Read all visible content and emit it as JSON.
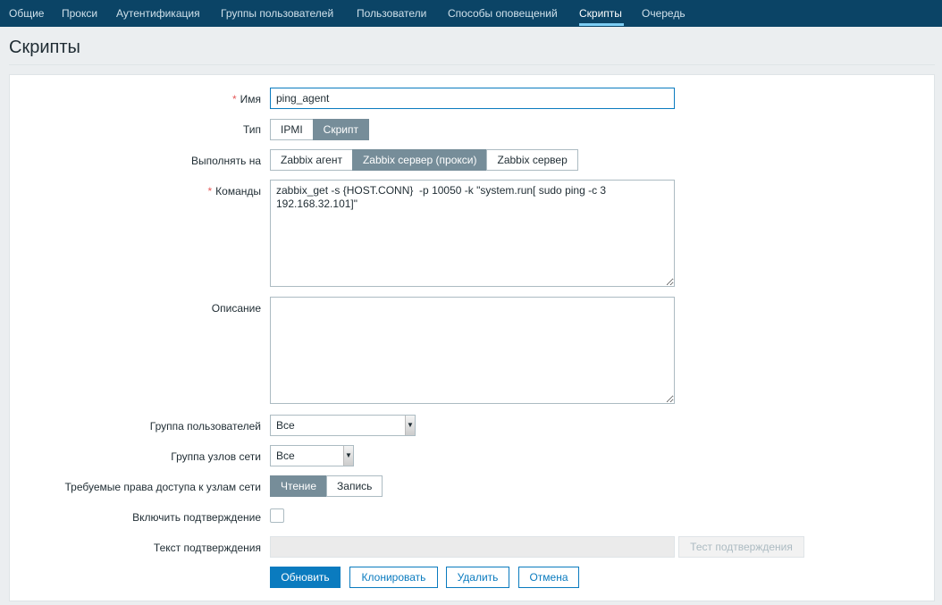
{
  "nav": {
    "items": [
      "Общие",
      "Прокси",
      "Аутентификация",
      "Группы пользователей",
      "Пользователи",
      "Способы оповещений",
      "Скрипты",
      "Очередь"
    ],
    "active": "Скрипты"
  },
  "page_title": "Скрипты",
  "form": {
    "name": {
      "label": "Имя",
      "value": "ping_agent",
      "required": true
    },
    "type": {
      "label": "Тип",
      "options": [
        "IPMI",
        "Скрипт"
      ],
      "selected": "Скрипт"
    },
    "execute_on": {
      "label": "Выполнять на",
      "options": [
        "Zabbix агент",
        "Zabbix сервер (прокси)",
        "Zabbix сервер"
      ],
      "selected": "Zabbix сервер (прокси)"
    },
    "commands": {
      "label": "Команды",
      "value": "zabbix_get -s {HOST.CONN}  -p 10050 -k \"system.run[ sudo ping -c 3 192.168.32.101]\"",
      "required": true
    },
    "description": {
      "label": "Описание",
      "value": ""
    },
    "user_group": {
      "label": "Группа пользователей",
      "value": "Все"
    },
    "host_group": {
      "label": "Группа узлов сети",
      "value": "Все"
    },
    "host_access": {
      "label": "Требуемые права доступа к узлам сети",
      "options": [
        "Чтение",
        "Запись"
      ],
      "selected": "Чтение"
    },
    "enable_confirmation": {
      "label": "Включить подтверждение",
      "checked": false
    },
    "confirmation_text": {
      "label": "Текст подтверждения",
      "value": "",
      "test_button": "Тест подтверждения"
    },
    "buttons": {
      "update": "Обновить",
      "clone": "Клонировать",
      "delete": "Удалить",
      "cancel": "Отмена"
    }
  },
  "colors": {
    "nav_bg": "#0b4466",
    "primary": "#0a7bbf",
    "segment_on": "#768d99",
    "required": "#e45959"
  }
}
